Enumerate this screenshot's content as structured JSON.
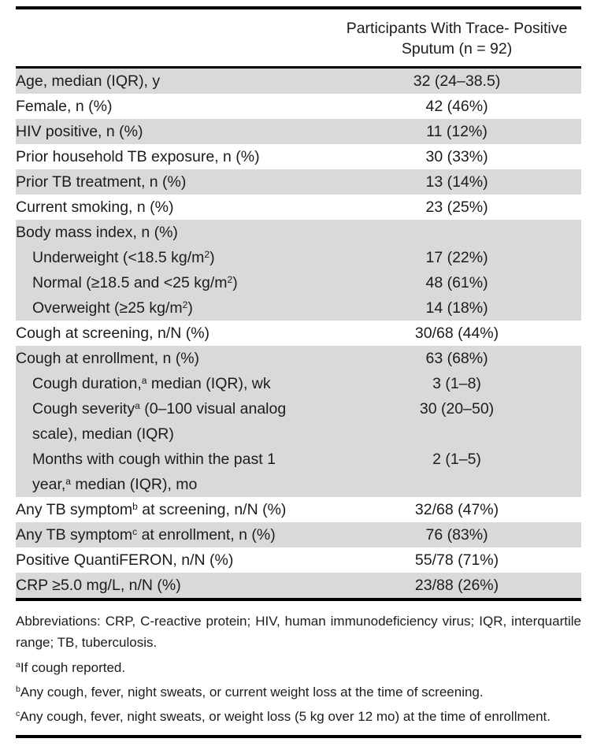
{
  "table": {
    "header": {
      "line1": "Participants With Trace- Positive",
      "line2": "Sputum (n = 92)"
    },
    "rows": [
      {
        "label": [
          {
            "t": "Age, median (IQR), y"
          }
        ],
        "value": "32 (24–38.5)",
        "shaded": true,
        "indent": false
      },
      {
        "label": [
          {
            "t": "Female, n (%)"
          }
        ],
        "value": "42 (46%)",
        "shaded": false,
        "indent": false
      },
      {
        "label": [
          {
            "t": "HIV positive, n (%)"
          }
        ],
        "value": "11 (12%)",
        "shaded": true,
        "indent": false
      },
      {
        "label": [
          {
            "t": "Prior household TB exposure, n (%)"
          }
        ],
        "value": "30 (33%)",
        "shaded": false,
        "indent": false
      },
      {
        "label": [
          {
            "t": "Prior TB treatment, n (%)"
          }
        ],
        "value": "13 (14%)",
        "shaded": true,
        "indent": false
      },
      {
        "label": [
          {
            "t": "Current smoking, n (%)"
          }
        ],
        "value": "23 (25%)",
        "shaded": false,
        "indent": false
      },
      {
        "label": [
          {
            "t": "Body mass index, n (%)"
          }
        ],
        "value": "",
        "shaded": true,
        "indent": false
      },
      {
        "label": [
          {
            "t": "Underweight (<18.5 kg/m"
          },
          {
            "t": "2",
            "sup": true
          },
          {
            "t": ")"
          }
        ],
        "value": "17 (22%)",
        "shaded": true,
        "indent": true
      },
      {
        "label": [
          {
            "t": "Normal (≥18.5 and <25 kg/m"
          },
          {
            "t": "2",
            "sup": true
          },
          {
            "t": ")"
          }
        ],
        "value": "48 (61%)",
        "shaded": true,
        "indent": true
      },
      {
        "label": [
          {
            "t": "Overweight (≥25 kg/m"
          },
          {
            "t": "2",
            "sup": true
          },
          {
            "t": ")"
          }
        ],
        "value": "14 (18%)",
        "shaded": true,
        "indent": true
      },
      {
        "label": [
          {
            "t": "Cough at screening, n/N (%)"
          }
        ],
        "value": "30/68 (44%)",
        "shaded": false,
        "indent": false
      },
      {
        "label": [
          {
            "t": "Cough at enrollment, n (%)"
          }
        ],
        "value": "63 (68%)",
        "shaded": true,
        "indent": false
      },
      {
        "label": [
          {
            "t": "Cough duration,"
          },
          {
            "t": "a",
            "sup": true
          },
          {
            "t": " median (IQR), wk"
          }
        ],
        "value": "3 (1–8)",
        "shaded": true,
        "indent": true
      },
      {
        "label": [
          {
            "t": "Cough severity"
          },
          {
            "t": "a",
            "sup": true
          },
          {
            "t": " (0–100 visual analog"
          },
          {
            "br": true
          },
          {
            "t": "scale), median (IQR)"
          }
        ],
        "value": "30 (20–50)",
        "shaded": true,
        "indent": true
      },
      {
        "label": [
          {
            "t": "Months with cough within the past 1"
          },
          {
            "br": true
          },
          {
            "t": "year,"
          },
          {
            "t": "a",
            "sup": true
          },
          {
            "t": " median (IQR), mo"
          }
        ],
        "value": "2 (1–5)",
        "shaded": true,
        "indent": true
      },
      {
        "label": [
          {
            "t": "Any TB symptom"
          },
          {
            "t": "b",
            "sup": true
          },
          {
            "t": " at screening, n/N (%)"
          }
        ],
        "value": "32/68 (47%)",
        "shaded": false,
        "indent": false
      },
      {
        "label": [
          {
            "t": "Any TB symptom"
          },
          {
            "t": "c",
            "sup": true
          },
          {
            "t": " at enrollment, n (%)"
          }
        ],
        "value": "76 (83%)",
        "shaded": true,
        "indent": false
      },
      {
        "label": [
          {
            "t": "Positive QuantiFERON, n/N (%)"
          }
        ],
        "value": "55/78 (71%)",
        "shaded": false,
        "indent": false
      },
      {
        "label": [
          {
            "t": "CRP ≥5.0 mg/L, n/N (%)"
          }
        ],
        "value": "23/88 (26%)",
        "shaded": true,
        "indent": false
      }
    ]
  },
  "footnotes": {
    "abbreviations": "Abbreviations: CRP, C-reactive protein; HIV, human immunodeficiency virus; IQR, interquartile range; TB, tuberculosis.",
    "items": [
      {
        "marker": "a",
        "text": "If cough reported."
      },
      {
        "marker": "b",
        "text": "Any cough, fever, night sweats, or current weight loss at the time of screening."
      },
      {
        "marker": "c",
        "text": "Any cough, fever, night sweats, or weight loss (5 kg over 12 mo) at the time of enrollment."
      }
    ]
  },
  "colors": {
    "row_shade": "#d9d9d9",
    "rule": "#000000",
    "text": "#1c1c1c"
  }
}
